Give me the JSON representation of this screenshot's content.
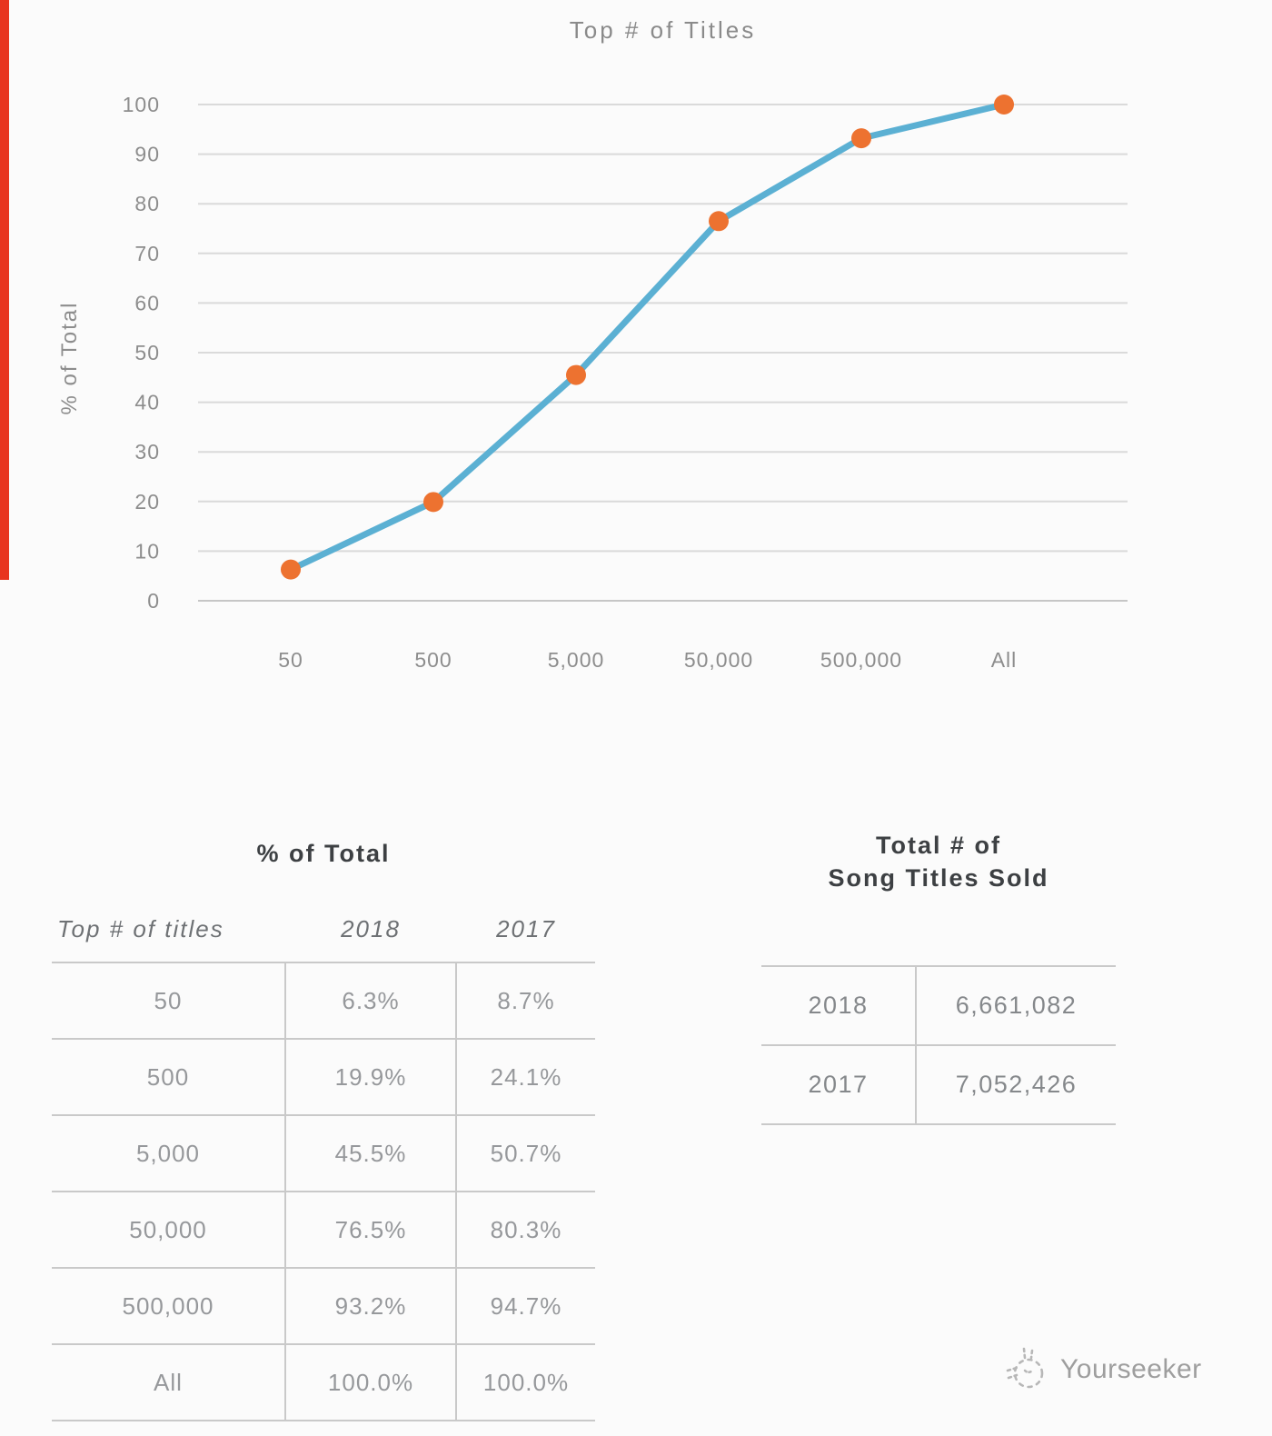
{
  "colors": {
    "background": "#fbfbfb",
    "line": "#5bb0d3",
    "marker": "#ed7230",
    "gridline": "#dadada",
    "axis_line": "#c6c6c6",
    "accent_strip": "#e8341f",
    "title_text": "#8a8a8a",
    "tick_text": "#8d8d8d",
    "table_title_text": "#3d4043",
    "table_header_text": "#6e7174",
    "table_value_text": "#96989b",
    "right_value_text": "#85888b",
    "table_rule": "#c9c9c9",
    "watermark_text": "#9e9e9e"
  },
  "chart": {
    "title": "Top # of Titles",
    "y_axis_label": "% of Total"
  },
  "chart_data": {
    "type": "line",
    "title": "Top # of Titles",
    "xlabel": "",
    "ylabel": "% of Total",
    "categories": [
      "50",
      "500",
      "5,000",
      "50,000",
      "500,000",
      "All"
    ],
    "series": [
      {
        "name": "2018",
        "values": [
          6.3,
          19.9,
          45.5,
          76.5,
          93.2,
          100.0
        ]
      }
    ],
    "ylim": [
      0,
      100
    ],
    "y_tick_step": 10,
    "grid": true,
    "legend": false,
    "line_color": "#5bb0d3",
    "marker_color": "#ed7230"
  },
  "left_table": {
    "title": "% of Total",
    "columns": [
      "Top # of titles",
      "2018",
      "2017"
    ],
    "rows": [
      [
        "50",
        "6.3%",
        "8.7%"
      ],
      [
        "500",
        "19.9%",
        "24.1%"
      ],
      [
        "5,000",
        "45.5%",
        "50.7%"
      ],
      [
        "50,000",
        "76.5%",
        "80.3%"
      ],
      [
        "500,000",
        "93.2%",
        "94.7%"
      ],
      [
        "All",
        "100.0%",
        "100.0%"
      ]
    ]
  },
  "right_table": {
    "title_line1": "Total # of",
    "title_line2": "Song Titles Sold",
    "rows": [
      [
        "2018",
        "6,661,082"
      ],
      [
        "2017",
        "7,052,426"
      ]
    ]
  },
  "watermark": {
    "brand": "Yourseeker",
    "logo_icon": "sketch-doodle-icon"
  }
}
